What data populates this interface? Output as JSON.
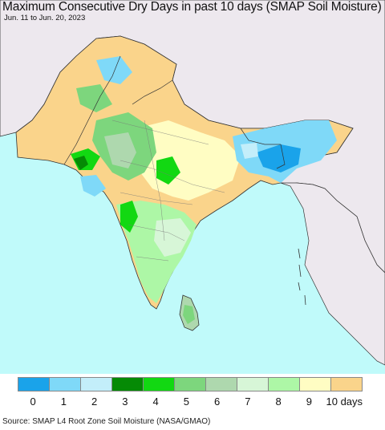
{
  "title": "Maximum Consecutive Dry Days in past 10 days (SMAP Soil Moisture)",
  "subtitle": "Jun. 11 to Jun. 20, 2023",
  "legend": {
    "labels": [
      "0",
      "1",
      "2",
      "3",
      "4",
      "5",
      "6",
      "7",
      "8",
      "9",
      "10 days"
    ],
    "colors": [
      "#1aa3ea",
      "#7fd9f8",
      "#c3eefa",
      "#058a05",
      "#12d812",
      "#7dd67d",
      "#aed8ae",
      "#d7f6d7",
      "#adf7a6",
      "#fffdc3",
      "#fad48b"
    ]
  },
  "colors": {
    "ocean": "#c0fafa",
    "land_outside": "#ede8ee",
    "borders": "#333333"
  },
  "source": "Source: SMAP L4 Root Zone Soil Moisture (NASA/GMAO)"
}
